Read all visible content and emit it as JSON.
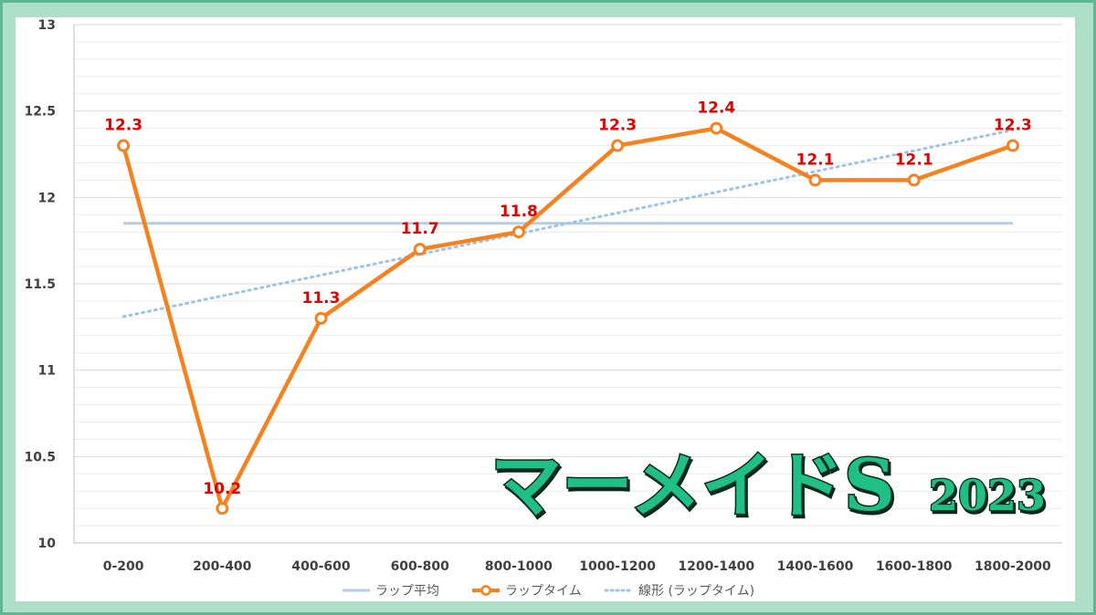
{
  "chart_data": {
    "type": "line",
    "categories": [
      "0-200",
      "200-400",
      "400-600",
      "600-800",
      "800-1000",
      "1000-1200",
      "1200-1400",
      "1400-1600",
      "1600-1800",
      "1800-2000"
    ],
    "series": [
      {
        "name": "ラップ平均",
        "values": [
          11.85,
          11.85,
          11.85,
          11.85,
          11.85,
          11.85,
          11.85,
          11.85,
          11.85,
          11.85
        ],
        "color": "#b4cde8",
        "style": "solid"
      },
      {
        "name": "ラップタイム",
        "values": [
          12.3,
          10.2,
          11.3,
          11.7,
          11.8,
          12.3,
          12.4,
          12.1,
          12.1,
          12.3
        ],
        "color": "#f5821f",
        "style": "solid-markers"
      },
      {
        "name": "線形 (ラップタイム)",
        "values": [
          11.31,
          11.43,
          11.55,
          11.67,
          11.79,
          11.91,
          12.03,
          12.15,
          12.27,
          12.39
        ],
        "color": "#9dc3e6",
        "style": "dotted"
      }
    ],
    "data_labels": [
      "12.3",
      "10.2",
      "11.3",
      "11.7",
      "11.8",
      "12.3",
      "12.4",
      "12.1",
      "12.1",
      "12.3"
    ],
    "yticks": [
      "10",
      "10.5",
      "11",
      "11.5",
      "12",
      "12.5",
      "13"
    ],
    "ylim": [
      10,
      13
    ],
    "grid": true,
    "legend": "bottom"
  },
  "overlay": {
    "title": "マーメイドS",
    "year": "2023",
    "fill": "#1fbf86",
    "stroke": "#0a2a20"
  },
  "legend": {
    "items": [
      "ラップ平均",
      "ラップタイム",
      "線形 (ラップタイム)"
    ]
  }
}
